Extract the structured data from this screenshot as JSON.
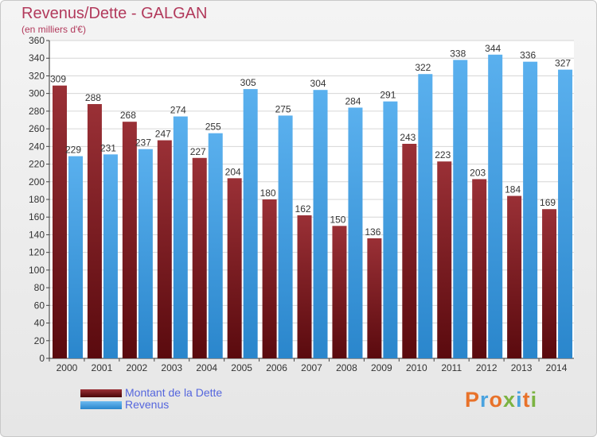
{
  "header": {
    "title": "Revenus/Dette - GALGAN",
    "subtitle": "(en milliers d'€)"
  },
  "legend": {
    "items": [
      {
        "label": "Montant de la Dette",
        "color": "#7a1a1e"
      },
      {
        "label": "Revenus",
        "color": "#3d9be0"
      }
    ]
  },
  "logo": {
    "text": "Proxiti",
    "colors": [
      "#e8722a",
      "#4aa3df",
      "#e8722a",
      "#7cb342",
      "#4aa3df",
      "#e8722a",
      "#7cb342"
    ]
  },
  "chart_data": {
    "type": "bar",
    "title": "Revenus/Dette - GALGAN",
    "subtitle": "(en milliers d'€)",
    "xlabel": "",
    "ylabel": "",
    "categories": [
      "2000",
      "2001",
      "2002",
      "2003",
      "2004",
      "2005",
      "2006",
      "2007",
      "2008",
      "2009",
      "2010",
      "2011",
      "2012",
      "2013",
      "2014"
    ],
    "series": [
      {
        "name": "Montant de la Dette",
        "color": "#7a1a1e",
        "values": [
          309,
          288,
          268,
          247,
          227,
          204,
          180,
          162,
          150,
          136,
          243,
          223,
          203,
          184,
          169
        ]
      },
      {
        "name": "Revenus",
        "color": "#3d9be0",
        "values": [
          229,
          231,
          237,
          274,
          255,
          305,
          275,
          304,
          284,
          291,
          322,
          338,
          344,
          336,
          327
        ]
      }
    ],
    "ylim": [
      0,
      360
    ],
    "ytick_step": 20,
    "grid": true,
    "legend_position": "bottom-left"
  }
}
